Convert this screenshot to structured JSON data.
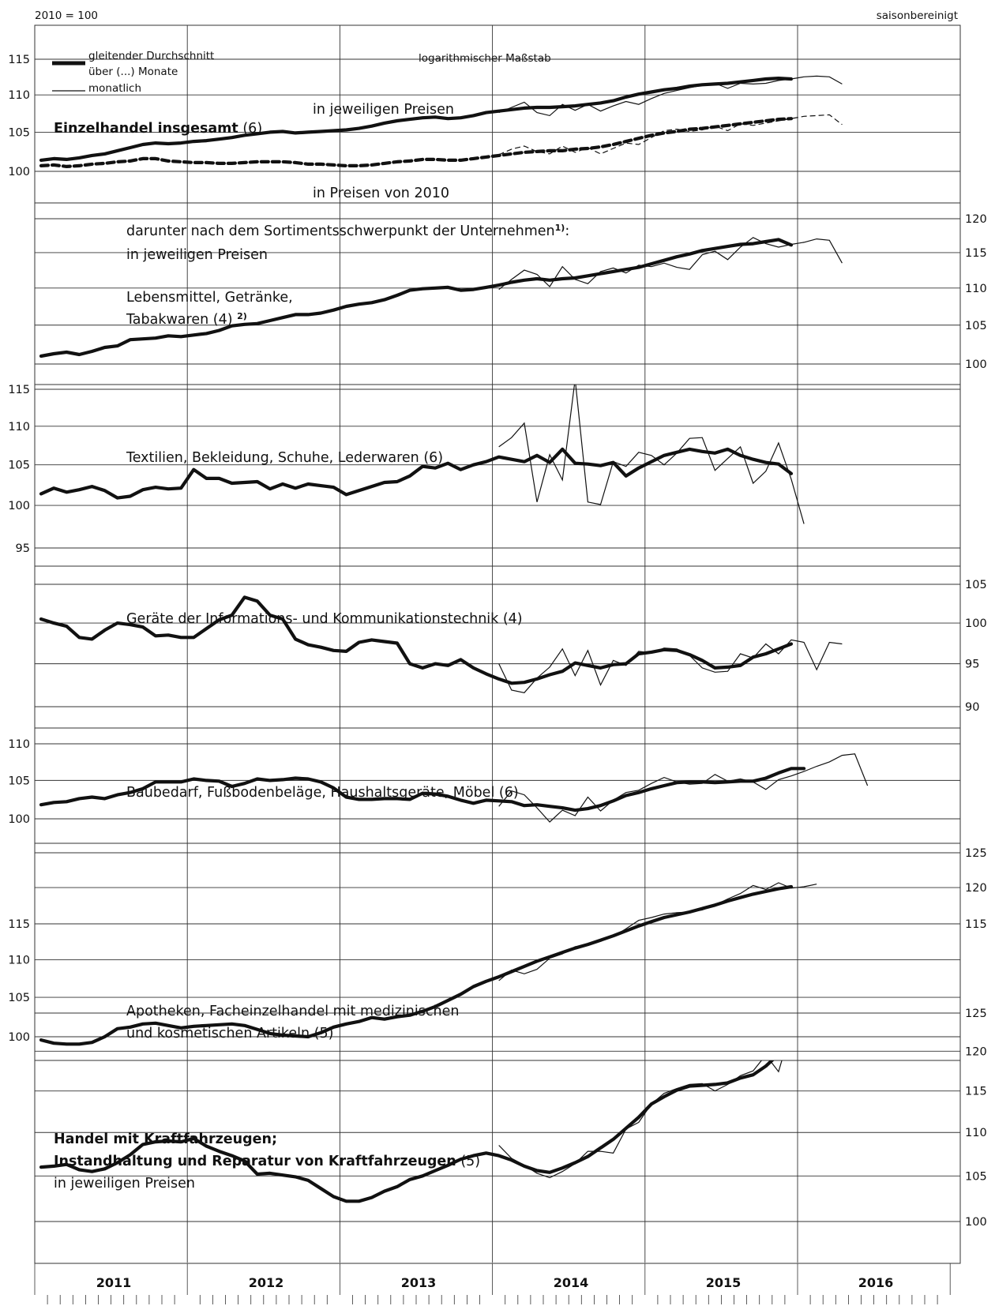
{
  "header": {
    "base": "2010 = 100",
    "adjustment": "saisonbereinigt"
  },
  "legend": {
    "ma_line1": "gleitender Durchschnitt",
    "ma_line2": "über (...) Monate",
    "monthly": "monatlich",
    "scale_note": "logarithmischer Maßstab"
  },
  "colors": {
    "line": "#111111",
    "grid": "#333333",
    "background": "#ffffff"
  },
  "chart_data": [
    {
      "type": "line",
      "title": "Einzelhandel insgesamt",
      "title_note": "(6)",
      "label_nominal": "in jeweiligen Preisen",
      "label_real": "in Preisen von 2010",
      "scale": "log",
      "y_axis_side": "left",
      "ylim": [
        98,
        116
      ],
      "yticks": [
        100,
        105,
        110,
        115
      ],
      "moving_average_months": 6,
      "series": [
        {
          "name": "in jeweiligen Preisen",
          "start": "2011-01",
          "ma": [
            101.4,
            101.6,
            101.5,
            101.7,
            102.0,
            102.2,
            102.6,
            103.0,
            103.4,
            103.6,
            103.5,
            103.6,
            103.8,
            103.9,
            104.1,
            104.3,
            104.6,
            104.8,
            105.0,
            105.1,
            104.9,
            105.0,
            105.1,
            105.2,
            105.3,
            105.5,
            105.8,
            106.2,
            106.5,
            106.7,
            106.9,
            107.0,
            106.8,
            106.9,
            107.2,
            107.6,
            107.8,
            108.0,
            108.2,
            108.3,
            108.3,
            108.4,
            108.5,
            108.7,
            108.9,
            109.2,
            109.7,
            110.1,
            110.4,
            110.7,
            110.9,
            111.2,
            111.4,
            111.5,
            111.6,
            111.8,
            112.0,
            112.2,
            112.3,
            112.2
          ],
          "monthly_start": "2014-01",
          "monthly": [
            107.6,
            108.3,
            109.0,
            107.6,
            107.2,
            108.7,
            107.9,
            108.7,
            107.8,
            108.5,
            109.1,
            108.7,
            109.5,
            110.2,
            110.6,
            111.0,
            111.3,
            111.6,
            110.9,
            111.6,
            111.5,
            111.6,
            112.0,
            112.2,
            112.5,
            112.6,
            112.5,
            111.5
          ]
        },
        {
          "name": "in Preisen von 2010",
          "start": "2011-01",
          "ma": [
            100.7,
            100.8,
            100.6,
            100.7,
            100.9,
            101.0,
            101.2,
            101.3,
            101.6,
            101.6,
            101.3,
            101.2,
            101.1,
            101.1,
            101.0,
            101.0,
            101.1,
            101.2,
            101.2,
            101.2,
            101.1,
            100.9,
            100.9,
            100.8,
            100.7,
            100.7,
            100.8,
            101.0,
            101.2,
            101.3,
            101.5,
            101.5,
            101.4,
            101.4,
            101.6,
            101.8,
            102.0,
            102.2,
            102.4,
            102.5,
            102.6,
            102.6,
            102.8,
            102.9,
            103.1,
            103.4,
            103.8,
            104.2,
            104.6,
            104.9,
            105.1,
            105.4,
            105.5,
            105.7,
            105.9,
            106.1,
            106.3,
            106.5,
            106.7,
            106.8
          ],
          "monthly_start": "2014-01",
          "monthly": [
            102.1,
            102.8,
            103.2,
            102.5,
            102.2,
            103.2,
            102.4,
            103.0,
            102.2,
            102.9,
            103.6,
            103.4,
            104.3,
            105.2,
            105.4,
            105.1,
            105.3,
            105.8,
            105.2,
            106.1,
            105.9,
            106.2,
            106.5,
            106.8,
            107.1,
            107.2,
            107.3,
            106.0
          ]
        }
      ]
    },
    {
      "type": "line",
      "group_intro": "darunter nach dem Sortimentsschwerpunkt der Unternehmen",
      "group_intro_sup": "1)",
      "group_intro_end": ":",
      "subtitle": "in jeweiligen Preisen",
      "title": "Lebensmittel, Getränke,",
      "title_line2": "Tabakwaren (4)",
      "title_sup": "2)",
      "scale": "log",
      "y_axis_side": "right",
      "ylim": [
        98,
        122
      ],
      "yticks": [
        100,
        105,
        110,
        115,
        120
      ],
      "moving_average_months": 4,
      "series": [
        {
          "name": "Durchschnitt",
          "start": "2011-01",
          "ma": [
            101.0,
            101.3,
            101.5,
            101.2,
            101.6,
            102.1,
            102.3,
            103.1,
            103.2,
            103.3,
            103.6,
            103.5,
            103.7,
            103.9,
            104.3,
            104.9,
            105.1,
            105.2,
            105.6,
            106.0,
            106.4,
            106.4,
            106.6,
            107.0,
            107.5,
            107.8,
            108.0,
            108.4,
            109.0,
            109.7,
            109.9,
            110.0,
            110.1,
            109.7,
            109.8,
            110.1,
            110.4,
            110.8,
            111.1,
            111.3,
            111.1,
            111.3,
            111.4,
            111.7,
            112.0,
            112.3,
            112.6,
            112.9,
            113.4,
            113.9,
            114.4,
            114.8,
            115.3,
            115.6,
            115.9,
            116.2,
            116.3,
            116.6,
            116.9,
            116.1
          ],
          "monthly_start": "2014-01",
          "monthly": [
            109.8,
            111.2,
            112.5,
            111.9,
            110.2,
            113.0,
            111.2,
            110.6,
            112.3,
            112.8,
            112.1,
            113.2,
            113.0,
            113.5,
            112.9,
            112.6,
            114.7,
            115.2,
            114.0,
            115.8,
            117.2,
            116.3,
            115.8,
            116.2,
            116.5,
            117.0,
            116.8,
            113.5
          ]
        }
      ]
    },
    {
      "type": "line",
      "title": "Textilien, Bekleidung, Schuhe, Lederwaren (6)",
      "scale": "log",
      "y_axis_side": "left",
      "ylim": [
        92,
        116
      ],
      "yticks": [
        95,
        100,
        105,
        110,
        115
      ],
      "moving_average_months": 6,
      "series": [
        {
          "name": "Durchschnitt",
          "start": "2011-01",
          "ma": [
            101.4,
            102.1,
            101.6,
            101.9,
            102.3,
            101.8,
            100.9,
            101.1,
            101.9,
            102.2,
            102.0,
            102.1,
            104.4,
            103.3,
            103.3,
            102.7,
            102.8,
            102.9,
            102.0,
            102.6,
            102.1,
            102.6,
            102.4,
            102.2,
            101.3,
            101.8,
            102.3,
            102.8,
            102.9,
            103.6,
            104.8,
            104.6,
            105.2,
            104.4,
            105.0,
            105.4,
            106.0,
            105.7,
            105.4,
            106.2,
            105.3,
            107.0,
            105.2,
            105.1,
            104.9,
            105.3,
            103.6,
            104.6,
            105.4,
            106.2,
            106.6,
            107.0,
            106.7,
            106.5,
            107.0,
            106.2,
            105.7,
            105.3,
            105.1,
            103.9
          ],
          "monthly_start": "2014-01",
          "monthly": [
            107.3,
            108.5,
            110.4,
            100.4,
            106.3,
            103.1,
            116.4,
            100.4,
            100.1,
            105.4,
            104.8,
            106.6,
            106.2,
            105.0,
            106.5,
            108.4,
            108.5,
            104.3,
            105.8,
            107.3,
            102.7,
            104.2,
            107.8,
            103.2,
            97.8
          ]
        }
      ]
    },
    {
      "type": "line",
      "title": "Geräte der Informations- und Kommunikationstechnik (4)",
      "scale": "log",
      "y_axis_side": "right",
      "ylim": [
        88,
        106
      ],
      "yticks": [
        90,
        95,
        100,
        105
      ],
      "moving_average_months": 4,
      "series": [
        {
          "name": "Durchschnitt",
          "start": "2011-01",
          "ma": [
            100.5,
            100.0,
            99.6,
            98.2,
            98.0,
            99.1,
            100.0,
            99.8,
            99.5,
            98.4,
            98.5,
            98.2,
            98.2,
            99.3,
            100.4,
            101.0,
            103.3,
            102.8,
            101.0,
            100.5,
            98.0,
            97.3,
            97.0,
            96.6,
            96.5,
            97.6,
            97.9,
            97.7,
            97.5,
            95.0,
            94.5,
            95.0,
            94.8,
            95.5,
            94.5,
            93.8,
            93.2,
            92.7,
            92.8,
            93.2,
            93.7,
            94.1,
            95.1,
            94.8,
            94.5,
            94.9,
            95.0,
            96.2,
            96.4,
            96.7,
            96.6,
            96.1,
            95.4,
            94.5,
            94.6,
            94.8,
            95.8,
            96.2,
            96.8,
            97.4
          ],
          "monthly_start": "2014-01",
          "monthly": [
            95.0,
            91.9,
            91.6,
            93.3,
            94.6,
            96.8,
            93.6,
            96.6,
            92.5,
            95.4,
            94.8,
            96.5,
            96.3,
            96.9,
            96.8,
            96.0,
            94.5,
            94.0,
            94.1,
            96.2,
            95.7,
            97.4,
            96.2,
            97.9,
            97.6,
            94.3,
            97.6,
            97.4
          ]
        }
      ]
    },
    {
      "type": "line",
      "title": "Baubedarf, Fußbodenbeläge, Haushaltsgeräte, Möbel (6)",
      "scale": "log",
      "y_axis_side": "left",
      "ylim": [
        98,
        111
      ],
      "yticks": [
        100,
        105,
        110
      ],
      "moving_average_months": 6,
      "series": [
        {
          "name": "Durchschnitt",
          "start": "2011-01",
          "ma": [
            101.8,
            102.1,
            102.2,
            102.6,
            102.8,
            102.6,
            103.1,
            103.4,
            103.9,
            104.8,
            104.8,
            104.8,
            105.2,
            105.0,
            104.9,
            104.2,
            104.6,
            105.2,
            105.0,
            105.1,
            105.3,
            105.2,
            104.8,
            104.0,
            102.8,
            102.5,
            102.5,
            102.6,
            102.6,
            102.5,
            103.3,
            103.2,
            102.9,
            102.4,
            102.0,
            102.4,
            102.3,
            102.2,
            101.7,
            101.8,
            101.6,
            101.4,
            101.1,
            101.3,
            101.7,
            102.3,
            103.0,
            103.4,
            103.9,
            104.3,
            104.7,
            104.8,
            104.8,
            104.7,
            104.8,
            104.9,
            104.9,
            105.3,
            106.0,
            106.6,
            106.6
          ],
          "monthly_start": "2014-01",
          "monthly": [
            101.6,
            103.6,
            103.1,
            101.4,
            99.6,
            101.1,
            100.4,
            102.8,
            101.0,
            102.4,
            103.4,
            103.7,
            104.6,
            105.4,
            104.8,
            104.5,
            104.6,
            105.8,
            104.9,
            105.2,
            104.8,
            103.8,
            105.1,
            105.6,
            106.2,
            106.9,
            107.5,
            108.4,
            108.6,
            104.3
          ]
        }
      ]
    },
    {
      "type": "line",
      "title": "Apotheken, Facheinzelhandel mit medizinischen",
      "title_line2": "und kosmetischen Artikeln (5)",
      "scale": "log",
      "y_axis_side": "left",
      "y_axis_side_2": "right",
      "ylim": [
        98,
        127
      ],
      "yticks": [
        100,
        105,
        110,
        115
      ],
      "yticks_right": [
        115,
        120,
        125
      ],
      "moving_average_months": 5,
      "series": [
        {
          "name": "Durchschnitt",
          "start": "2011-01",
          "ma": [
            99.6,
            99.2,
            99.1,
            99.1,
            99.3,
            100.0,
            101.0,
            101.2,
            101.6,
            101.7,
            101.4,
            101.1,
            101.3,
            101.4,
            101.5,
            101.6,
            101.4,
            100.9,
            100.4,
            100.2,
            100.1,
            100.0,
            100.5,
            101.2,
            101.6,
            101.9,
            102.4,
            102.2,
            102.5,
            102.7,
            103.2,
            103.8,
            104.6,
            105.4,
            106.4,
            107.1,
            107.7,
            108.4,
            109.1,
            109.8,
            110.4,
            111.0,
            111.6,
            112.1,
            112.7,
            113.3,
            114.0,
            114.7,
            115.3,
            115.9,
            116.3,
            116.7,
            117.2,
            117.7,
            118.3,
            118.8,
            119.3,
            119.7,
            120.1,
            120.4
          ],
          "monthly_start": "2014-01",
          "monthly": [
            107.2,
            108.6,
            108.1,
            108.7,
            110.2,
            110.8,
            111.8,
            112.0,
            112.6,
            113.2,
            114.3,
            115.5,
            115.9,
            116.4,
            116.6,
            116.7,
            117.0,
            117.7,
            118.6,
            119.4,
            120.6,
            120.0,
            121.0,
            120.2,
            120.4,
            120.8
          ]
        }
      ]
    },
    {
      "type": "line",
      "title": "Handel mit Kraftfahrzeugen;",
      "title_line2": "Instandhaltung und Reparatur von Kraftfahrzeugen",
      "title_note": "(5)",
      "subtitle": "in jeweiligen Preisen",
      "scale": "log",
      "y_axis_side": "right",
      "ylim": [
        98,
        127
      ],
      "yticks": [
        100,
        105,
        110,
        115,
        120,
        125
      ],
      "moving_average_months": 5,
      "series": [
        {
          "name": "Durchschnitt",
          "start": "2011-01",
          "ma": [
            106.0,
            106.1,
            106.3,
            105.7,
            105.5,
            105.8,
            106.5,
            107.4,
            108.6,
            108.9,
            109.0,
            108.9,
            109.3,
            108.4,
            107.8,
            107.3,
            106.7,
            105.2,
            105.3,
            105.1,
            104.9,
            104.5,
            103.6,
            102.7,
            102.2,
            102.2,
            102.6,
            103.3,
            103.8,
            104.6,
            105.0,
            105.6,
            106.2,
            106.9,
            107.3,
            107.6,
            107.3,
            106.8,
            106.1,
            105.6,
            105.4,
            105.9,
            106.5,
            107.2,
            108.2,
            109.2,
            110.5,
            111.8,
            113.4,
            114.3,
            115.1,
            115.6,
            115.7,
            115.8,
            116.0,
            116.6,
            117.0,
            118.1,
            119.6,
            121.1
          ],
          "monthly_start": "2014-01",
          "monthly": [
            108.5,
            107.0,
            106.2,
            105.3,
            104.8,
            105.5,
            106.4,
            107.8,
            107.8,
            107.6,
            110.4,
            111.2,
            113.4,
            114.7,
            115.3,
            115.8,
            115.9,
            115.0,
            115.8,
            116.9,
            117.5,
            119.5,
            117.4,
            123.0,
            123.6
          ]
        }
      ]
    }
  ],
  "x_axis": {
    "years": [
      "2011",
      "2012",
      "2013",
      "2014",
      "2015",
      "2016"
    ]
  }
}
